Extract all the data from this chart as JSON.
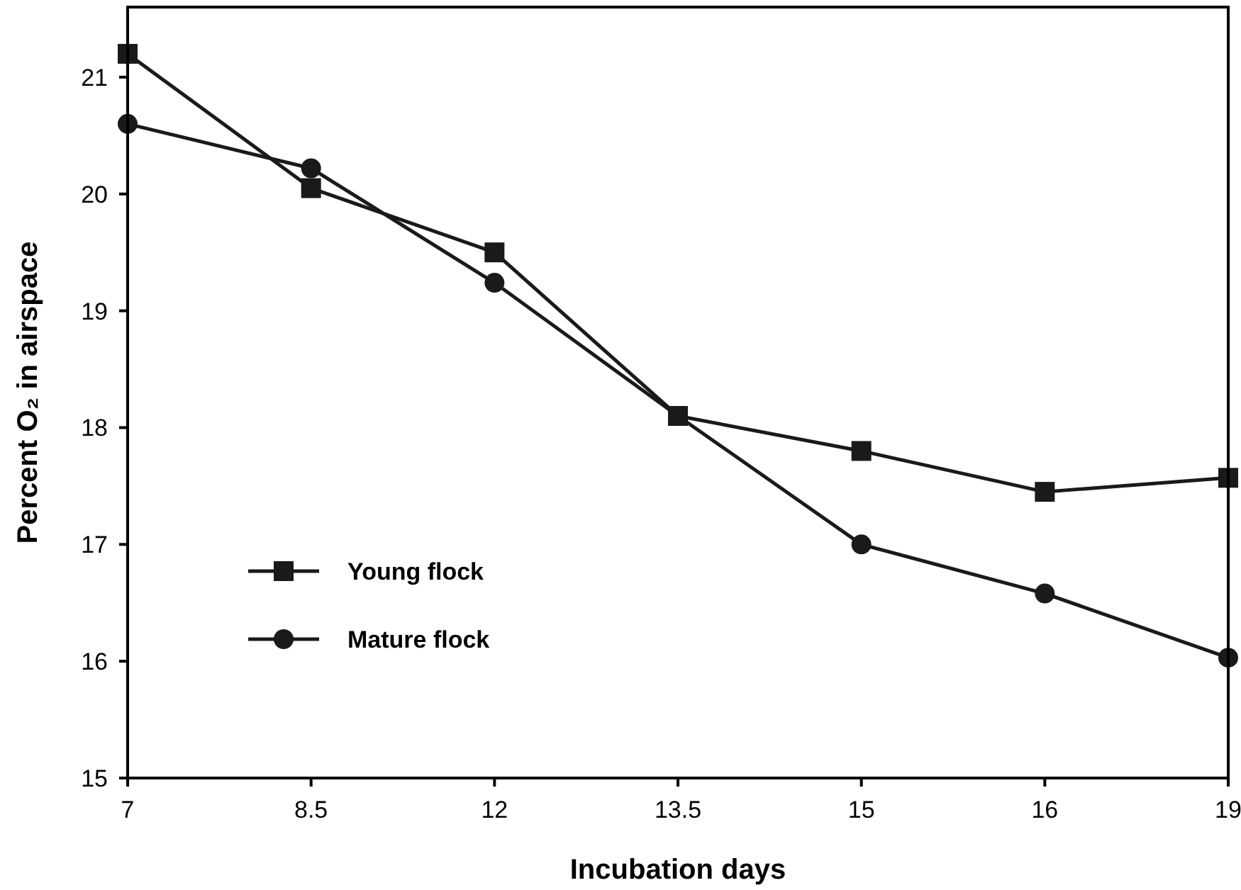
{
  "chart_data": {
    "type": "line",
    "xlabel": "Incubation days",
    "ylabel": "Percent O₂ in airspace",
    "categories": [
      "7",
      "8.5",
      "12",
      "13.5",
      "15",
      "16",
      "19"
    ],
    "ylim": [
      15,
      21.6
    ],
    "yticks": [
      15,
      16,
      17,
      18,
      19,
      20,
      21
    ],
    "grid": false,
    "legend": "bottom left",
    "line_style": "solid",
    "series": [
      {
        "name": "Young flock",
        "color": "#1a1a1a",
        "marker": "square",
        "values": [
          21.2,
          20.05,
          19.5,
          18.1,
          17.8,
          17.45,
          17.57
        ]
      },
      {
        "name": "Mature flock",
        "color": "#1a1a1a",
        "marker": "circle",
        "values": [
          20.6,
          20.22,
          19.24,
          18.1,
          17.0,
          16.58,
          16.03
        ]
      }
    ]
  }
}
